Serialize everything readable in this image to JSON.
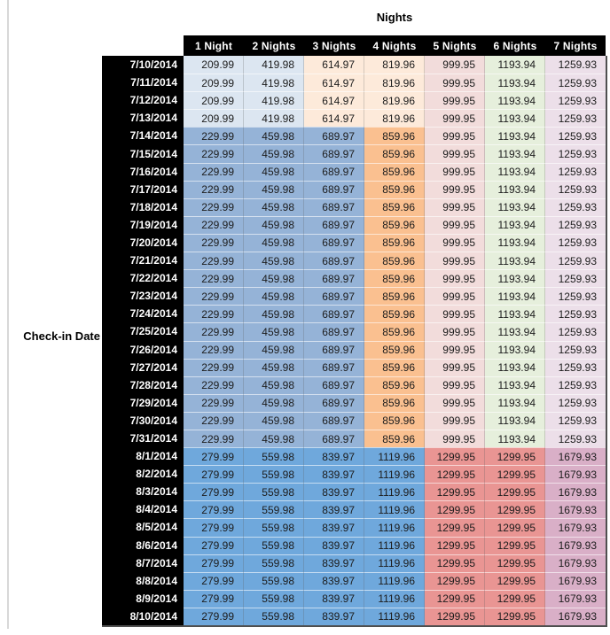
{
  "palette": {
    "lightBlue": "#dce6f1",
    "medBlue": "#95b3d7",
    "darkBlue": "#6fa8dc",
    "lightOrange": "#fdeada",
    "medOrange": "#fac090",
    "lightRose": "#f2dcdb",
    "medRed": "#e99593",
    "lightGreen": "#e6efdc",
    "lightPurple": "#ecdfe9",
    "medPurple": "#d9afc7",
    "headerBg": "#000000",
    "headerText": "#ffffff"
  },
  "chart_data": {
    "type": "table",
    "title": "Nights",
    "row_axis_label": "Check-in Date",
    "columns": [
      "1 Night",
      "2 Nights",
      "3 Nights",
      "4 Nights",
      "5 Nights",
      "6 Nights",
      "7 Nights"
    ],
    "row_groups": {
      "early_july": {
        "colors": [
          "lightBlue",
          "lightBlue",
          "lightOrange",
          "lightOrange",
          "lightRose",
          "lightGreen",
          "lightPurple"
        ]
      },
      "mid_july": {
        "colors": [
          "medBlue",
          "medBlue",
          "medBlue",
          "medOrange",
          "lightRose",
          "lightGreen",
          "lightPurple"
        ]
      },
      "august": {
        "colors": [
          "darkBlue",
          "darkBlue",
          "darkBlue",
          "darkBlue",
          "medRed",
          "medRed",
          "medPurple"
        ]
      }
    },
    "rows": [
      {
        "date": "7/10/2014",
        "group": "early_july",
        "values": [
          "209.99",
          "419.98",
          "614.97",
          "819.96",
          "999.95",
          "1193.94",
          "1259.93"
        ]
      },
      {
        "date": "7/11/2014",
        "group": "early_july",
        "values": [
          "209.99",
          "419.98",
          "614.97",
          "819.96",
          "999.95",
          "1193.94",
          "1259.93"
        ]
      },
      {
        "date": "7/12/2014",
        "group": "early_july",
        "values": [
          "209.99",
          "419.98",
          "614.97",
          "819.96",
          "999.95",
          "1193.94",
          "1259.93"
        ]
      },
      {
        "date": "7/13/2014",
        "group": "early_july",
        "values": [
          "209.99",
          "419.98",
          "614.97",
          "819.96",
          "999.95",
          "1193.94",
          "1259.93"
        ]
      },
      {
        "date": "7/14/2014",
        "group": "mid_july",
        "values": [
          "229.99",
          "459.98",
          "689.97",
          "859.96",
          "999.95",
          "1193.94",
          "1259.93"
        ]
      },
      {
        "date": "7/15/2014",
        "group": "mid_july",
        "values": [
          "229.99",
          "459.98",
          "689.97",
          "859.96",
          "999.95",
          "1193.94",
          "1259.93"
        ]
      },
      {
        "date": "7/16/2014",
        "group": "mid_july",
        "values": [
          "229.99",
          "459.98",
          "689.97",
          "859.96",
          "999.95",
          "1193.94",
          "1259.93"
        ]
      },
      {
        "date": "7/17/2014",
        "group": "mid_july",
        "values": [
          "229.99",
          "459.98",
          "689.97",
          "859.96",
          "999.95",
          "1193.94",
          "1259.93"
        ]
      },
      {
        "date": "7/18/2014",
        "group": "mid_july",
        "values": [
          "229.99",
          "459.98",
          "689.97",
          "859.96",
          "999.95",
          "1193.94",
          "1259.93"
        ]
      },
      {
        "date": "7/19/2014",
        "group": "mid_july",
        "values": [
          "229.99",
          "459.98",
          "689.97",
          "859.96",
          "999.95",
          "1193.94",
          "1259.93"
        ]
      },
      {
        "date": "7/20/2014",
        "group": "mid_july",
        "values": [
          "229.99",
          "459.98",
          "689.97",
          "859.96",
          "999.95",
          "1193.94",
          "1259.93"
        ]
      },
      {
        "date": "7/21/2014",
        "group": "mid_july",
        "values": [
          "229.99",
          "459.98",
          "689.97",
          "859.96",
          "999.95",
          "1193.94",
          "1259.93"
        ]
      },
      {
        "date": "7/22/2014",
        "group": "mid_july",
        "values": [
          "229.99",
          "459.98",
          "689.97",
          "859.96",
          "999.95",
          "1193.94",
          "1259.93"
        ]
      },
      {
        "date": "7/23/2014",
        "group": "mid_july",
        "values": [
          "229.99",
          "459.98",
          "689.97",
          "859.96",
          "999.95",
          "1193.94",
          "1259.93"
        ]
      },
      {
        "date": "7/24/2014",
        "group": "mid_july",
        "values": [
          "229.99",
          "459.98",
          "689.97",
          "859.96",
          "999.95",
          "1193.94",
          "1259.93"
        ]
      },
      {
        "date": "7/25/2014",
        "group": "mid_july",
        "values": [
          "229.99",
          "459.98",
          "689.97",
          "859.96",
          "999.95",
          "1193.94",
          "1259.93"
        ]
      },
      {
        "date": "7/26/2014",
        "group": "mid_july",
        "values": [
          "229.99",
          "459.98",
          "689.97",
          "859.96",
          "999.95",
          "1193.94",
          "1259.93"
        ]
      },
      {
        "date": "7/27/2014",
        "group": "mid_july",
        "values": [
          "229.99",
          "459.98",
          "689.97",
          "859.96",
          "999.95",
          "1193.94",
          "1259.93"
        ]
      },
      {
        "date": "7/28/2014",
        "group": "mid_july",
        "values": [
          "229.99",
          "459.98",
          "689.97",
          "859.96",
          "999.95",
          "1193.94",
          "1259.93"
        ]
      },
      {
        "date": "7/29/2014",
        "group": "mid_july",
        "values": [
          "229.99",
          "459.98",
          "689.97",
          "859.96",
          "999.95",
          "1193.94",
          "1259.93"
        ]
      },
      {
        "date": "7/30/2014",
        "group": "mid_july",
        "values": [
          "229.99",
          "459.98",
          "689.97",
          "859.96",
          "999.95",
          "1193.94",
          "1259.93"
        ]
      },
      {
        "date": "7/31/2014",
        "group": "mid_july",
        "values": [
          "229.99",
          "459.98",
          "689.97",
          "859.96",
          "999.95",
          "1193.94",
          "1259.93"
        ]
      },
      {
        "date": "8/1/2014",
        "group": "august",
        "values": [
          "279.99",
          "559.98",
          "839.97",
          "1119.96",
          "1299.95",
          "1299.95",
          "1679.93"
        ]
      },
      {
        "date": "8/2/2014",
        "group": "august",
        "values": [
          "279.99",
          "559.98",
          "839.97",
          "1119.96",
          "1299.95",
          "1299.95",
          "1679.93"
        ]
      },
      {
        "date": "8/3/2014",
        "group": "august",
        "values": [
          "279.99",
          "559.98",
          "839.97",
          "1119.96",
          "1299.95",
          "1299.95",
          "1679.93"
        ]
      },
      {
        "date": "8/4/2014",
        "group": "august",
        "values": [
          "279.99",
          "559.98",
          "839.97",
          "1119.96",
          "1299.95",
          "1299.95",
          "1679.93"
        ]
      },
      {
        "date": "8/5/2014",
        "group": "august",
        "values": [
          "279.99",
          "559.98",
          "839.97",
          "1119.96",
          "1299.95",
          "1299.95",
          "1679.93"
        ]
      },
      {
        "date": "8/6/2014",
        "group": "august",
        "values": [
          "279.99",
          "559.98",
          "839.97",
          "1119.96",
          "1299.95",
          "1299.95",
          "1679.93"
        ]
      },
      {
        "date": "8/7/2014",
        "group": "august",
        "values": [
          "279.99",
          "559.98",
          "839.97",
          "1119.96",
          "1299.95",
          "1299.95",
          "1679.93"
        ]
      },
      {
        "date": "8/8/2014",
        "group": "august",
        "values": [
          "279.99",
          "559.98",
          "839.97",
          "1119.96",
          "1299.95",
          "1299.95",
          "1679.93"
        ]
      },
      {
        "date": "8/9/2014",
        "group": "august",
        "values": [
          "279.99",
          "559.98",
          "839.97",
          "1119.96",
          "1299.95",
          "1299.95",
          "1679.93"
        ]
      },
      {
        "date": "8/10/2014",
        "group": "august",
        "values": [
          "279.99",
          "559.98",
          "839.97",
          "1119.96",
          "1299.95",
          "1299.95",
          "1679.93"
        ]
      }
    ]
  }
}
